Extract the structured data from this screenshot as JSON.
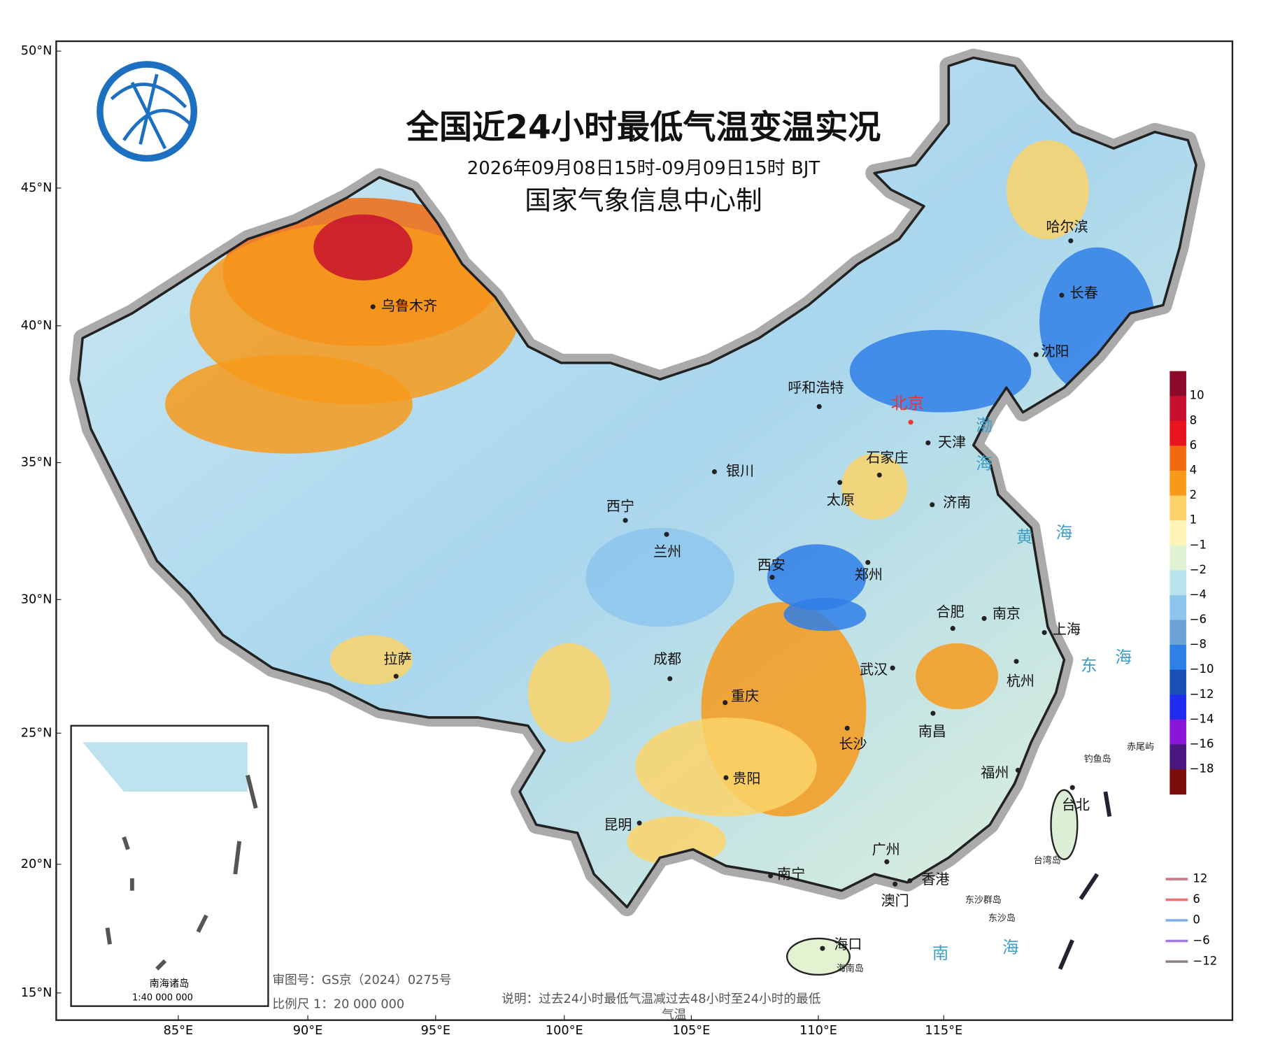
{
  "header": {
    "title": "全国近24小时最低气温变温实况",
    "subtitle": "2026年09月08日15时-09月09日15时 BJT",
    "producer": "国家气象信息中心制"
  },
  "axes": {
    "lat_labels": [
      "50°N",
      "45°N",
      "40°N",
      "35°N",
      "30°N",
      "25°N",
      "20°N",
      "15°N"
    ],
    "lon_labels": [
      "85°E",
      "90°E",
      "95°E",
      "100°E",
      "105°E",
      "110°E",
      "115°E"
    ]
  },
  "colorbar": {
    "labels": [
      "10",
      "8",
      "6",
      "4",
      "2",
      "1",
      "−1",
      "−2",
      "−4",
      "−6",
      "−8",
      "−10",
      "−12",
      "−14",
      "−16",
      "−18"
    ],
    "colors": [
      "#8b0a2a",
      "#c8102e",
      "#e8141e",
      "#f26a10",
      "#f79a1a",
      "#fbd36a",
      "#fdf3b4",
      "#dff3d2",
      "#b9e4ef",
      "#8dc6ec",
      "#6aa2d8",
      "#2f7fe8",
      "#1b4fb8",
      "#1f2cf0",
      "#8a16d8",
      "#4a1680",
      "#7a0c0c"
    ]
  },
  "contours": {
    "labels": [
      "12",
      "6",
      "0",
      "−6",
      "−12"
    ],
    "colors": [
      "#c87b8a",
      "#f07070",
      "#80aee6",
      "#a07ad8",
      "#8a8080"
    ]
  },
  "cities": [
    {
      "name": "乌鲁木齐"
    },
    {
      "name": "哈尔滨"
    },
    {
      "name": "长春"
    },
    {
      "name": "沈阳"
    },
    {
      "name": "呼和浩特"
    },
    {
      "name": "北京"
    },
    {
      "name": "天津"
    },
    {
      "name": "石家庄"
    },
    {
      "name": "太原"
    },
    {
      "name": "济南"
    },
    {
      "name": "银川"
    },
    {
      "name": "西宁"
    },
    {
      "name": "兰州"
    },
    {
      "name": "西安"
    },
    {
      "name": "郑州"
    },
    {
      "name": "合肥"
    },
    {
      "name": "南京"
    },
    {
      "name": "上海"
    },
    {
      "name": "武汉"
    },
    {
      "name": "杭州"
    },
    {
      "name": "成都"
    },
    {
      "name": "重庆"
    },
    {
      "name": "长沙"
    },
    {
      "name": "南昌"
    },
    {
      "name": "福州"
    },
    {
      "name": "拉萨"
    },
    {
      "name": "贵阳"
    },
    {
      "name": "昆明"
    },
    {
      "name": "南宁"
    },
    {
      "name": "广州"
    },
    {
      "name": "香港"
    },
    {
      "name": "澳门"
    },
    {
      "name": "海口"
    },
    {
      "name": "台北"
    }
  ],
  "seas": [
    "渤",
    "海",
    "黄",
    "海",
    "东",
    "海",
    "南",
    "海"
  ],
  "islands": [
    "钓鱼岛",
    "赤尾屿",
    "台湾岛",
    "海南岛",
    "东沙群岛",
    "东沙岛"
  ],
  "inset": {
    "title": "南海诸岛",
    "scale": "1:40 000 000"
  },
  "notes": {
    "approval": "审图号：GS京（2024）0275号",
    "scale": "比例尺 1：20 000 000",
    "explanation": [
      "说明：过去24小时最低气温减过去48小时至24小时的最低",
      "气温"
    ]
  }
}
